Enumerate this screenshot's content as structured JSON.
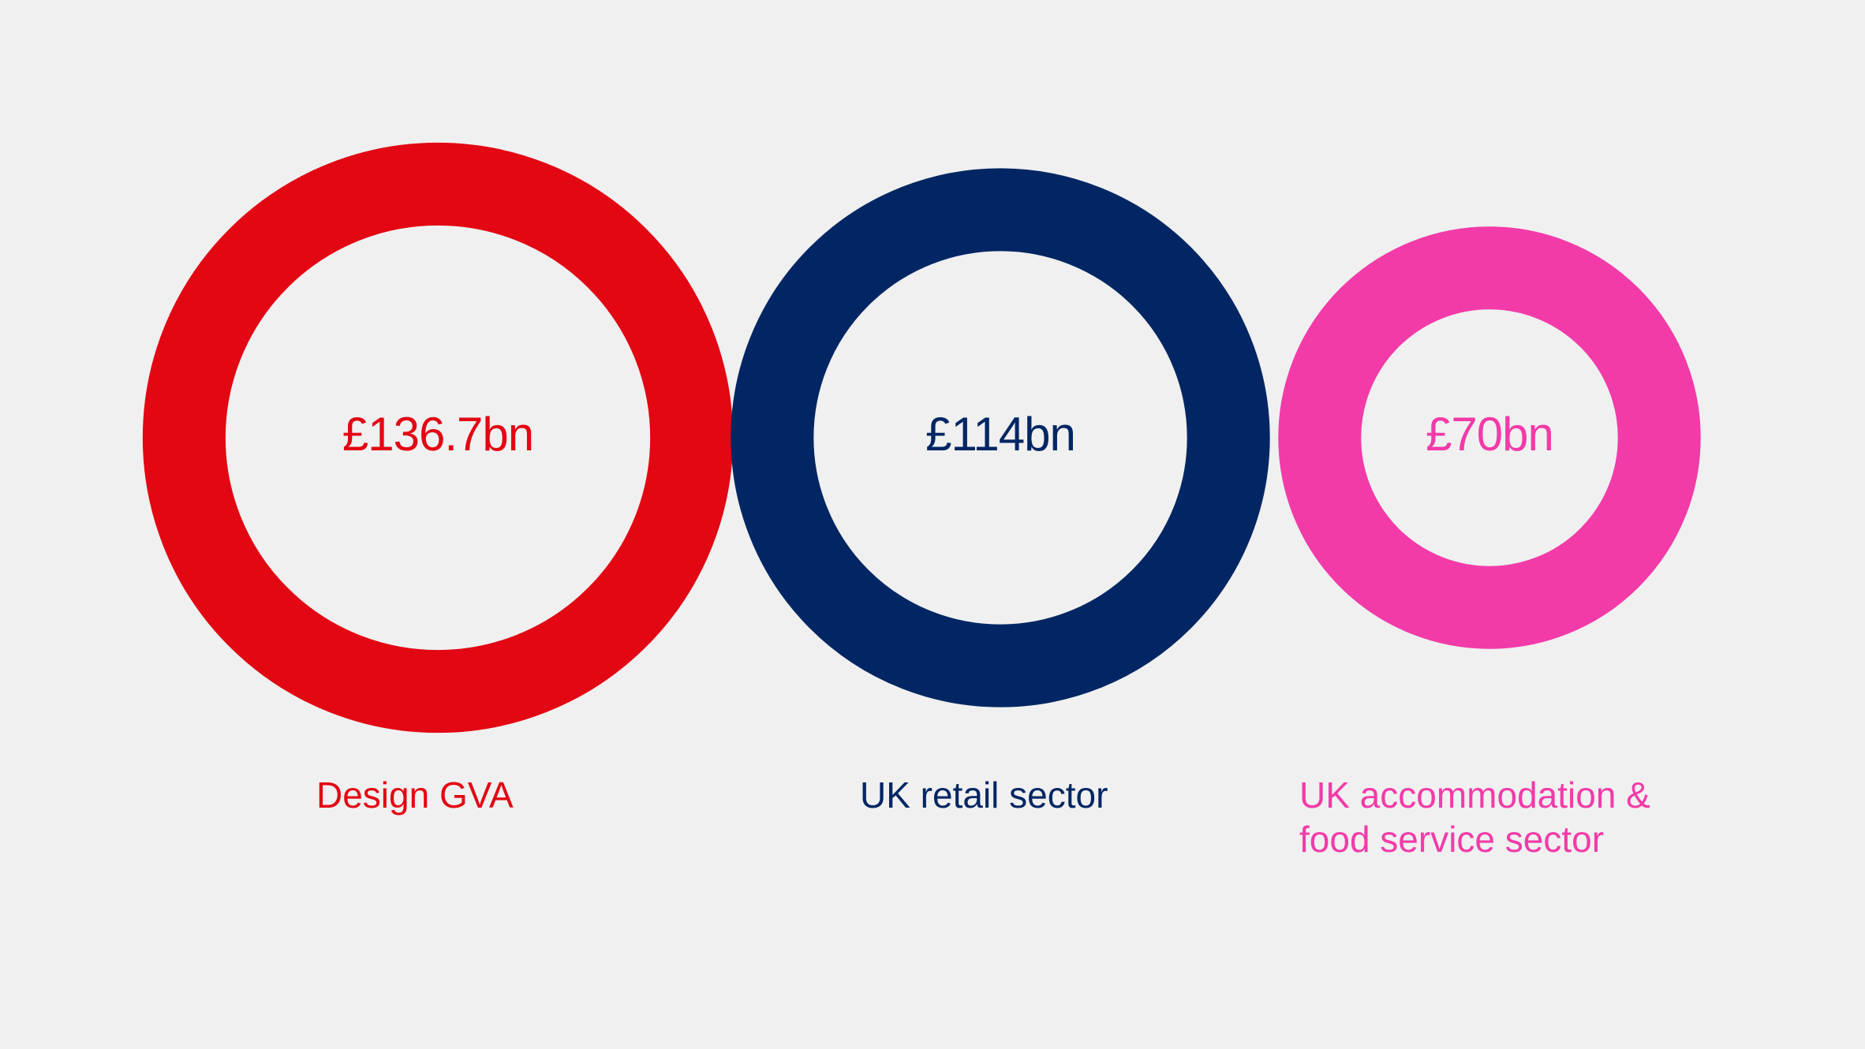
{
  "chart_data": {
    "type": "ring",
    "categories": [
      "Design GVA",
      "UK retail sector",
      "UK accommodation & food service sector"
    ],
    "values": [
      136.7,
      114,
      70
    ],
    "value_labels": [
      "£136.7bn",
      "£114bn",
      "£70bn"
    ],
    "colors": [
      "#e30613",
      "#012663",
      "#f23ba8"
    ]
  }
}
